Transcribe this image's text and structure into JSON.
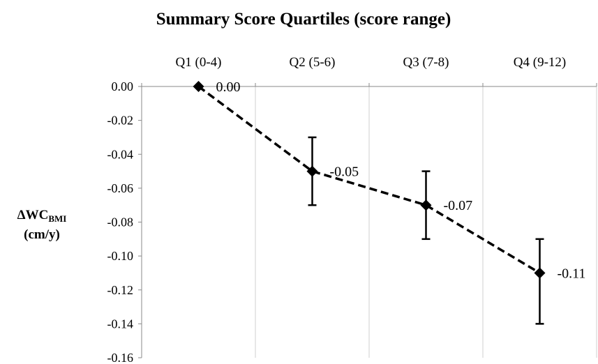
{
  "chart_data": {
    "type": "line",
    "title": "Summary Score Quartiles (score range)",
    "ylabel": {
      "main": "ΔWC",
      "sub": "BMI",
      "unit": "(cm/y)"
    },
    "categories": [
      "Q1 (0-4)",
      "Q2 (5-6)",
      "Q3 (7-8)",
      "Q4 (9-12)"
    ],
    "series": [
      {
        "values": [
          0.0,
          -0.05,
          -0.07,
          -0.11
        ],
        "labels": [
          "0.00",
          "-0.05",
          "-0.07",
          "-0.11"
        ],
        "error_upper": [
          0.0,
          -0.03,
          -0.05,
          -0.09
        ],
        "error_lower": [
          0.0,
          -0.07,
          -0.09,
          -0.14
        ],
        "marker": "diamond",
        "line_style": "dashed",
        "color": "#000000"
      }
    ],
    "ylim": [
      -0.16,
      0.0
    ],
    "yticks": [
      0.0,
      -0.02,
      -0.04,
      -0.06,
      -0.08,
      -0.1,
      -0.12,
      -0.14,
      -0.16
    ],
    "ytick_labels": [
      "0.00",
      "-0.02",
      "-0.04",
      "-0.06",
      "-0.08",
      "-0.10",
      "-0.12",
      "-0.14",
      "-0.16"
    ],
    "grid": "vertical",
    "x_axis_position": "top",
    "legend": "none"
  }
}
